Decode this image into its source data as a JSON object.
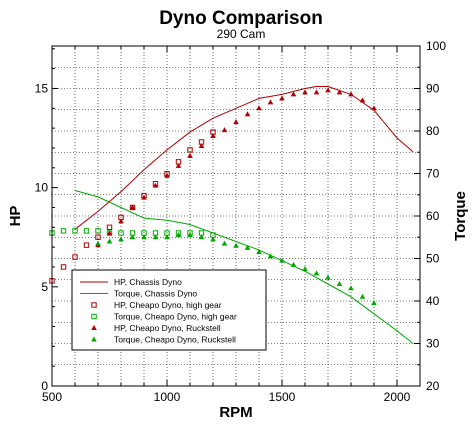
{
  "chart_data": {
    "type": "line",
    "title": "Dyno Comparison",
    "subtitle": "290 Cam",
    "xlabel": "RPM",
    "ylabel": "HP",
    "ylabel_right": "Torque",
    "xlim": [
      500,
      2100
    ],
    "ylim": [
      0,
      17.14
    ],
    "ylim_right": [
      20,
      100
    ],
    "x_ticks": [
      500,
      1000,
      1500,
      2000
    ],
    "y_ticks": [
      0,
      5,
      10,
      15
    ],
    "y_ticks_right": [
      20,
      30,
      40,
      50,
      60,
      70,
      80,
      90,
      100
    ],
    "grid": true,
    "legend_position": "bottom-left",
    "colors": {
      "hp": "#b00000",
      "torque": "#00a800"
    },
    "series": [
      {
        "name": "HP, Chassis Dyno",
        "axis": "left",
        "style": "line",
        "color": "#b00000",
        "x": [
          600,
          700,
          800,
          900,
          1000,
          1100,
          1200,
          1300,
          1400,
          1500,
          1600,
          1650,
          1700,
          1800,
          1900,
          2000,
          2070
        ],
        "y": [
          7.9,
          8.8,
          9.8,
          10.9,
          11.9,
          12.8,
          13.5,
          14.0,
          14.5,
          14.7,
          15.0,
          15.1,
          15.1,
          14.7,
          13.9,
          12.5,
          11.8
        ]
      },
      {
        "name": "Torque, Chassis Dyno",
        "axis": "right",
        "style": "line",
        "color": "#00a800",
        "x": [
          600,
          700,
          800,
          900,
          1000,
          1100,
          1200,
          1300,
          1400,
          1500,
          1600,
          1700,
          1800,
          1900,
          2000,
          2070
        ],
        "y": [
          66,
          64.5,
          62,
          59.5,
          59,
          58,
          56,
          54,
          52,
          49.5,
          47,
          44,
          41,
          37,
          33,
          30
        ]
      },
      {
        "name": "HP, Cheapo Dyno, high gear",
        "axis": "left",
        "style": "open-square",
        "color": "#b00000",
        "x": [
          500,
          550,
          600,
          650,
          700,
          750,
          800,
          850,
          900,
          950,
          1000,
          1050,
          1100,
          1150,
          1200
        ],
        "y": [
          5.3,
          6.0,
          6.5,
          7.1,
          7.5,
          8.0,
          8.5,
          9.0,
          9.6,
          10.2,
          10.7,
          11.3,
          11.9,
          12.3,
          12.8
        ]
      },
      {
        "name": "Torque, Cheapo Dyno, high gear",
        "axis": "right",
        "style": "open-square",
        "color": "#00a800",
        "x": [
          500,
          550,
          600,
          650,
          700,
          750,
          800,
          850,
          900,
          950,
          1000,
          1050,
          1100,
          1150,
          1200
        ],
        "y": [
          56,
          56.5,
          56.5,
          56.5,
          56.5,
          56,
          56,
          56,
          56,
          56,
          56,
          56,
          56,
          56,
          55.5
        ]
      },
      {
        "name": "HP, Cheapo Dyno, Ruckstell",
        "axis": "left",
        "style": "filled-triangle",
        "color": "#b00000",
        "x": [
          700,
          750,
          800,
          850,
          900,
          950,
          1000,
          1050,
          1100,
          1150,
          1200,
          1250,
          1300,
          1350,
          1400,
          1450,
          1500,
          1550,
          1600,
          1650,
          1700,
          1750,
          1800,
          1850,
          1900
        ],
        "y": [
          7.1,
          7.7,
          8.3,
          9.0,
          9.5,
          10.1,
          10.6,
          11.1,
          11.6,
          12.1,
          12.6,
          12.9,
          13.3,
          13.7,
          14.0,
          14.3,
          14.5,
          14.7,
          14.8,
          14.8,
          14.9,
          14.8,
          14.7,
          14.4,
          14.0
        ]
      },
      {
        "name": "Torque, Cheapo Dyno, Ruckstell",
        "axis": "right",
        "style": "filled-triangle",
        "color": "#00a800",
        "x": [
          700,
          750,
          800,
          850,
          900,
          950,
          1000,
          1050,
          1100,
          1150,
          1200,
          1250,
          1300,
          1350,
          1400,
          1450,
          1500,
          1550,
          1600,
          1650,
          1700,
          1750,
          1800,
          1850,
          1900
        ],
        "y": [
          53.5,
          54,
          54.5,
          55,
          55,
          55,
          55,
          55.5,
          55.5,
          55,
          54.5,
          53.5,
          53,
          52.5,
          51.5,
          50.5,
          49.5,
          48.5,
          47.5,
          46.5,
          45.5,
          44,
          43,
          41,
          39.5
        ]
      }
    ]
  }
}
